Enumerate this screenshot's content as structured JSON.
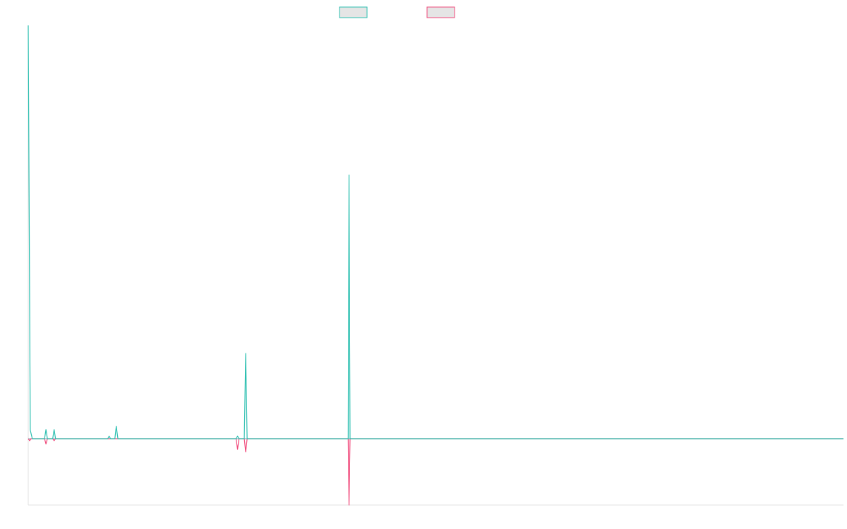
{
  "colors": {
    "series_a": "#2bbfb0",
    "series_b": "#f0487a",
    "swatch_fill": "#e5e5e5",
    "axis": "#e0e0e0",
    "baseline": "#7aa7b5"
  },
  "chart_data": {
    "type": "line",
    "title": "",
    "xlabel": "",
    "ylabel": "",
    "grid": false,
    "legend_position": "top-center",
    "xlim": [
      0,
      400
    ],
    "ylim": [
      -100,
      630
    ],
    "series": [
      {
        "label": "",
        "color_key": "series_a",
        "points": [
          [
            0,
            630
          ],
          [
            1,
            13
          ],
          [
            2,
            0
          ],
          [
            8,
            0
          ],
          [
            8.7,
            14
          ],
          [
            9.4,
            0
          ],
          [
            12,
            0
          ],
          [
            12.7,
            14
          ],
          [
            13.4,
            0
          ],
          [
            39,
            0
          ],
          [
            39.7,
            4
          ],
          [
            40.4,
            0
          ],
          [
            42.5,
            0
          ],
          [
            43.2,
            19
          ],
          [
            44,
            0
          ],
          [
            102,
            0
          ],
          [
            102.7,
            4
          ],
          [
            103.4,
            0
          ],
          [
            106,
            0
          ],
          [
            106.7,
            130
          ],
          [
            107.4,
            0
          ],
          [
            157,
            0
          ],
          [
            157.4,
            402
          ],
          [
            157.9,
            0
          ],
          [
            400,
            0
          ]
        ]
      },
      {
        "label": "",
        "color_key": "series_b",
        "points": [
          [
            0,
            0
          ],
          [
            0.7,
            -3
          ],
          [
            1.4,
            0
          ],
          [
            8,
            0
          ],
          [
            8.7,
            -8
          ],
          [
            9.4,
            0
          ],
          [
            12,
            0
          ],
          [
            12.7,
            -3
          ],
          [
            13.4,
            0
          ],
          [
            102,
            0
          ],
          [
            102.7,
            -16
          ],
          [
            103.4,
            0
          ],
          [
            106,
            0
          ],
          [
            106.7,
            -20
          ],
          [
            107.4,
            0
          ],
          [
            157,
            0
          ],
          [
            157.4,
            -100
          ],
          [
            157.9,
            0
          ],
          [
            400,
            0
          ]
        ]
      }
    ]
  }
}
